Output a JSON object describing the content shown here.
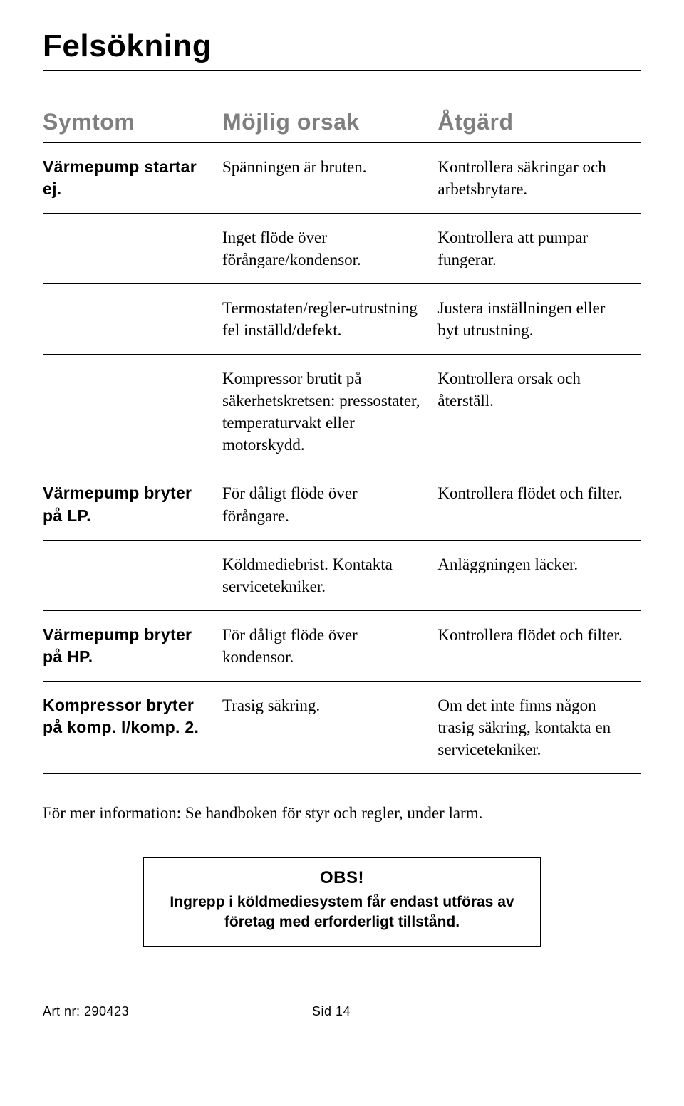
{
  "title": "Felsökning",
  "table": {
    "headers": {
      "symptom": "Symtom",
      "cause": "Möjlig orsak",
      "action": "Åtgärd"
    },
    "rows": [
      {
        "symptom": "Värmepump startar ej.",
        "cause": "Spänningen är bruten.",
        "action": "Kontrollera säkringar och arbetsbrytare.",
        "sep": true
      },
      {
        "symptom": "",
        "cause": "Inget flöde över förångare/kondensor.",
        "action": "Kontrollera att pumpar fungerar.",
        "sep": true
      },
      {
        "symptom": "",
        "cause": "Termostaten/regler-utrustning fel inställd/defekt.",
        "action": "Justera inställningen eller byt utrustning.",
        "sep": true
      },
      {
        "symptom": "",
        "cause": "Kompressor brutit på säkerhetskretsen: pressostater, temperaturvakt eller motorskydd.",
        "action": "Kontrollera orsak och återställ.",
        "sep": true
      },
      {
        "symptom": "Värmepump bryter på LP.",
        "cause": "För dåligt flöde över förångare.",
        "action": "Kontrollera flödet och filter.",
        "sep": true
      },
      {
        "symptom": "",
        "cause": "Köldmediebrist. Kontakta servicetekniker.",
        "action": "Anläggningen läcker.",
        "sep": true
      },
      {
        "symptom": "Värmepump bryter på HP.",
        "cause": "För dåligt flöde över kondensor.",
        "action": "Kontrollera flödet och filter.",
        "sep": true
      },
      {
        "symptom": "Kompressor bryter på komp. l/komp. 2.",
        "cause": "Trasig säkring.",
        "action": "Om det inte finns någon trasig säkring, kontakta en servicetekniker.",
        "sep": true
      }
    ]
  },
  "moreInfo": "För mer information: Se handboken för styr och regler, under larm.",
  "note": {
    "title": "OBS!",
    "body": "Ingrepp i köldmediesystem får endast utföras av företag med erforderligt tillstånd."
  },
  "footer": {
    "art": "Art nr: 290423",
    "page": "Sid 14"
  },
  "colors": {
    "headerText": "#807f80",
    "bodyText": "#000000",
    "background": "#ffffff",
    "rule": "#000000"
  }
}
